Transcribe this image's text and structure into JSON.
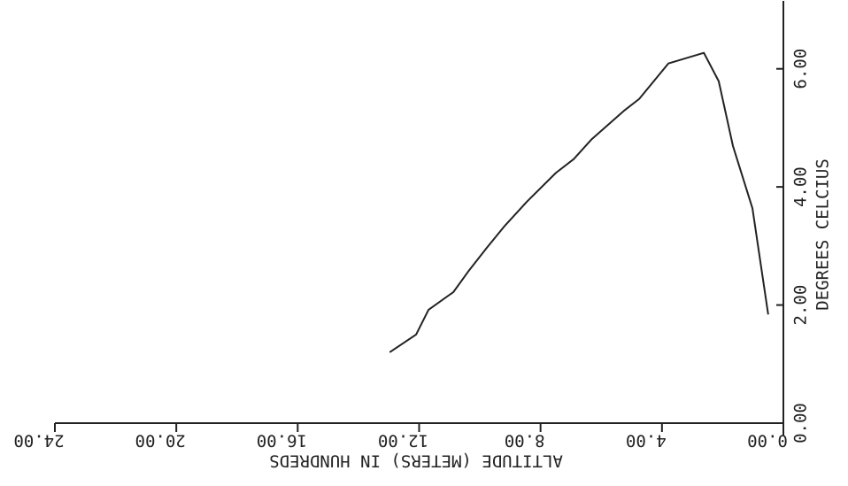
{
  "chart_data": {
    "type": "line",
    "xlabel": "ALTITUDE (METERS)  IN HUNDREDS",
    "ylabel": "DEGREES CELCIUS",
    "x": [
      0.5,
      1.02,
      1.66,
      2.13,
      2.62,
      3.79,
      4.75,
      5.25,
      6.33,
      6.91,
      7.49,
      8.45,
      9.18,
      9.77,
      10.35,
      10.87,
      11.69,
      12.1,
      12.97
    ],
    "series": [
      {
        "color": "#222222",
        "values": [
          1.84,
          3.64,
          4.69,
          5.79,
          6.27,
          6.09,
          5.49,
          5.29,
          4.8,
          4.47,
          4.24,
          3.75,
          3.34,
          2.97,
          2.59,
          2.22,
          1.92,
          1.5,
          1.2
        ]
      }
    ],
    "xlim": [
      0,
      24
    ],
    "ylim": [
      0,
      7
    ],
    "xticks": [
      {
        "value": 0,
        "label": "0.00"
      },
      {
        "value": 4,
        "label": "4.00"
      },
      {
        "value": 8,
        "label": "8.00"
      },
      {
        "value": 12,
        "label": "12.00"
      },
      {
        "value": 16,
        "label": "16.00"
      },
      {
        "value": 20,
        "label": "20.00"
      },
      {
        "value": 24,
        "label": "24.00"
      }
    ],
    "yticks": [
      {
        "value": 0,
        "label": "0.00"
      },
      {
        "value": 2,
        "label": "2.00"
      },
      {
        "value": 4,
        "label": "4.00"
      },
      {
        "value": 6,
        "label": "6.00"
      }
    ]
  }
}
